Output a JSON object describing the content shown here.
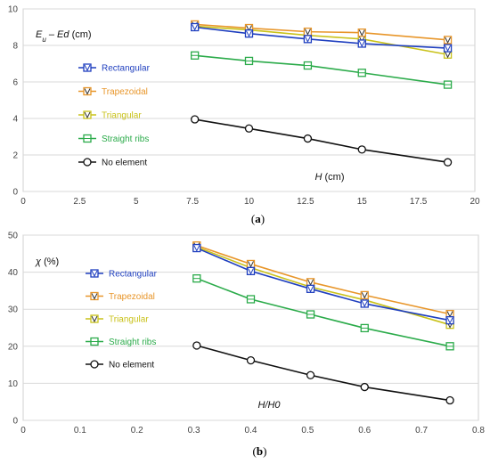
{
  "chart_data": [
    {
      "type": "line",
      "panel_label": "(a)",
      "ylabel": "E_u – E_d (cm)",
      "xlabel": "H (cm)",
      "xlim": [
        0,
        20
      ],
      "ylim": [
        0,
        10
      ],
      "xticks": [
        "0",
        "2.5",
        "5",
        "7.5",
        "10",
        "12.5",
        "15",
        "17.5",
        "20"
      ],
      "yticks": [
        "0",
        "2",
        "4",
        "6",
        "8",
        "10"
      ],
      "grid": true,
      "legend_position": "left",
      "x": [
        7.6,
        10,
        12.6,
        15,
        18.8
      ],
      "series": [
        {
          "name": "Rectangular",
          "color": "#1f3fbf",
          "marker": "square-v",
          "values": [
            9.0,
            8.65,
            8.35,
            8.1,
            7.85
          ]
        },
        {
          "name": "Trapezoidal",
          "color": "#e8962a",
          "marker": "triangle-down",
          "values": [
            9.15,
            8.95,
            8.75,
            8.7,
            8.3
          ]
        },
        {
          "name": "Triangular",
          "color": "#c9c21a",
          "marker": "triangle-down",
          "values": [
            9.05,
            8.85,
            8.55,
            8.35,
            7.5
          ]
        },
        {
          "name": "Straight ribs",
          "color": "#2bab4a",
          "marker": "square",
          "values": [
            7.45,
            7.15,
            6.9,
            6.5,
            5.85
          ]
        },
        {
          "name": "No element",
          "color": "#111111",
          "marker": "circle",
          "values": [
            3.95,
            3.45,
            2.9,
            2.3,
            1.6
          ]
        }
      ]
    },
    {
      "type": "line",
      "panel_label": "(b)",
      "ylabel": "χ (%)",
      "xlabel": "H/H_0",
      "xlim": [
        0,
        0.8
      ],
      "ylim": [
        0,
        50
      ],
      "xticks": [
        "0",
        "0.1",
        "0.2",
        "0.3",
        "0.4",
        "0.5",
        "0.6",
        "0.7",
        "0.8"
      ],
      "yticks": [
        "0",
        "10",
        "20",
        "30",
        "40",
        "50"
      ],
      "grid": true,
      "legend_position": "left",
      "x": [
        0.305,
        0.4,
        0.505,
        0.6,
        0.75
      ],
      "series": [
        {
          "name": "Rectangular",
          "color": "#1f3fbf",
          "marker": "square-v",
          "values": [
            46.5,
            40.3,
            35.5,
            31.5,
            27.0
          ]
        },
        {
          "name": "Trapezoidal",
          "color": "#e8962a",
          "marker": "triangle-down",
          "values": [
            47.2,
            42.2,
            37.3,
            33.8,
            28.7
          ]
        },
        {
          "name": "Triangular",
          "color": "#c9c21a",
          "marker": "triangle-down",
          "values": [
            46.8,
            41.2,
            36.0,
            32.5,
            25.8
          ]
        },
        {
          "name": "Straight ribs",
          "color": "#2bab4a",
          "marker": "square",
          "values": [
            38.3,
            32.7,
            28.6,
            24.9,
            20.0
          ]
        },
        {
          "name": "No element",
          "color": "#111111",
          "marker": "circle",
          "values": [
            20.2,
            16.2,
            12.2,
            9.0,
            5.4
          ]
        }
      ]
    }
  ]
}
